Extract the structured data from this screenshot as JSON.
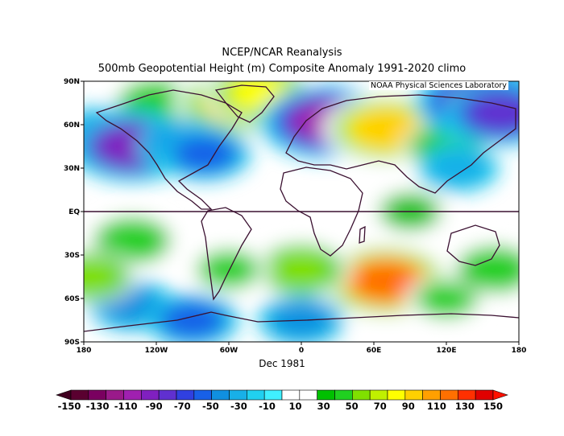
{
  "title_line1": "NCEP/NCAR Reanalysis",
  "title_line2": "500mb Geopotential Height (m) Composite Anomaly 1991-2020 climo",
  "credit": "NOAA Physical Sciences Laboratory",
  "date_label": "Dec 1981",
  "axes": {
    "lat_ticks": [
      "90N",
      "60N",
      "30N",
      "EQ",
      "30S",
      "60S",
      "90S"
    ],
    "lon_ticks": [
      "180",
      "120W",
      "60W",
      "0",
      "60E",
      "120E",
      "180"
    ]
  },
  "colorbar": {
    "labels": [
      "-150",
      "-130",
      "-110",
      "-90",
      "-70",
      "-50",
      "-30",
      "-10",
      "10",
      "30",
      "50",
      "70",
      "90",
      "110",
      "130",
      "150"
    ],
    "colors": [
      "#5a0030",
      "#7a0060",
      "#9a1a8a",
      "#a020b0",
      "#8020c0",
      "#6030d0",
      "#3040e0",
      "#1860e8",
      "#1090e0",
      "#18b0e8",
      "#20d0f0",
      "#40f0ff",
      "#ffffff",
      "#ffffff",
      "#00c000",
      "#20d020",
      "#80e000",
      "#c0f000",
      "#ffff00",
      "#ffd000",
      "#ffa000",
      "#ff7000",
      "#ff3000",
      "#e00000"
    ],
    "low_color": "#400020",
    "high_color": "#ff1000"
  },
  "anomaly_field": [
    {
      "lon": -120,
      "lat": 75,
      "value": 40
    },
    {
      "lon": -55,
      "lat": 75,
      "value": 100
    },
    {
      "lon": -35,
      "lat": 82,
      "value": 80
    },
    {
      "lon": -160,
      "lat": 50,
      "value": -90
    },
    {
      "lon": -140,
      "lat": 45,
      "value": -110
    },
    {
      "lon": -95,
      "lat": 45,
      "value": -60
    },
    {
      "lon": -80,
      "lat": 40,
      "value": -50
    },
    {
      "lon": 0,
      "lat": 60,
      "value": -40
    },
    {
      "lon": 20,
      "lat": 62,
      "value": -120
    },
    {
      "lon": 70,
      "lat": 57,
      "value": 110
    },
    {
      "lon": 120,
      "lat": 45,
      "value": 40
    },
    {
      "lon": 150,
      "lat": 75,
      "value": -130
    },
    {
      "lon": 165,
      "lat": 68,
      "value": -90
    },
    {
      "lon": 130,
      "lat": 30,
      "value": -30
    },
    {
      "lon": 70,
      "lat": -48,
      "value": 140
    },
    {
      "lon": 0,
      "lat": -40,
      "value": 60
    },
    {
      "lon": -140,
      "lat": -20,
      "value": 40
    },
    {
      "lon": -60,
      "lat": -40,
      "value": 30
    },
    {
      "lon": -140,
      "lat": -65,
      "value": -40
    },
    {
      "lon": -90,
      "lat": -75,
      "value": -50
    },
    {
      "lon": 0,
      "lat": -75,
      "value": -40
    },
    {
      "lon": 120,
      "lat": -60,
      "value": 30
    },
    {
      "lon": 160,
      "lat": -40,
      "value": 40
    },
    {
      "lon": -175,
      "lat": -45,
      "value": 50
    },
    {
      "lon": 90,
      "lat": 0,
      "value": 20
    }
  ]
}
